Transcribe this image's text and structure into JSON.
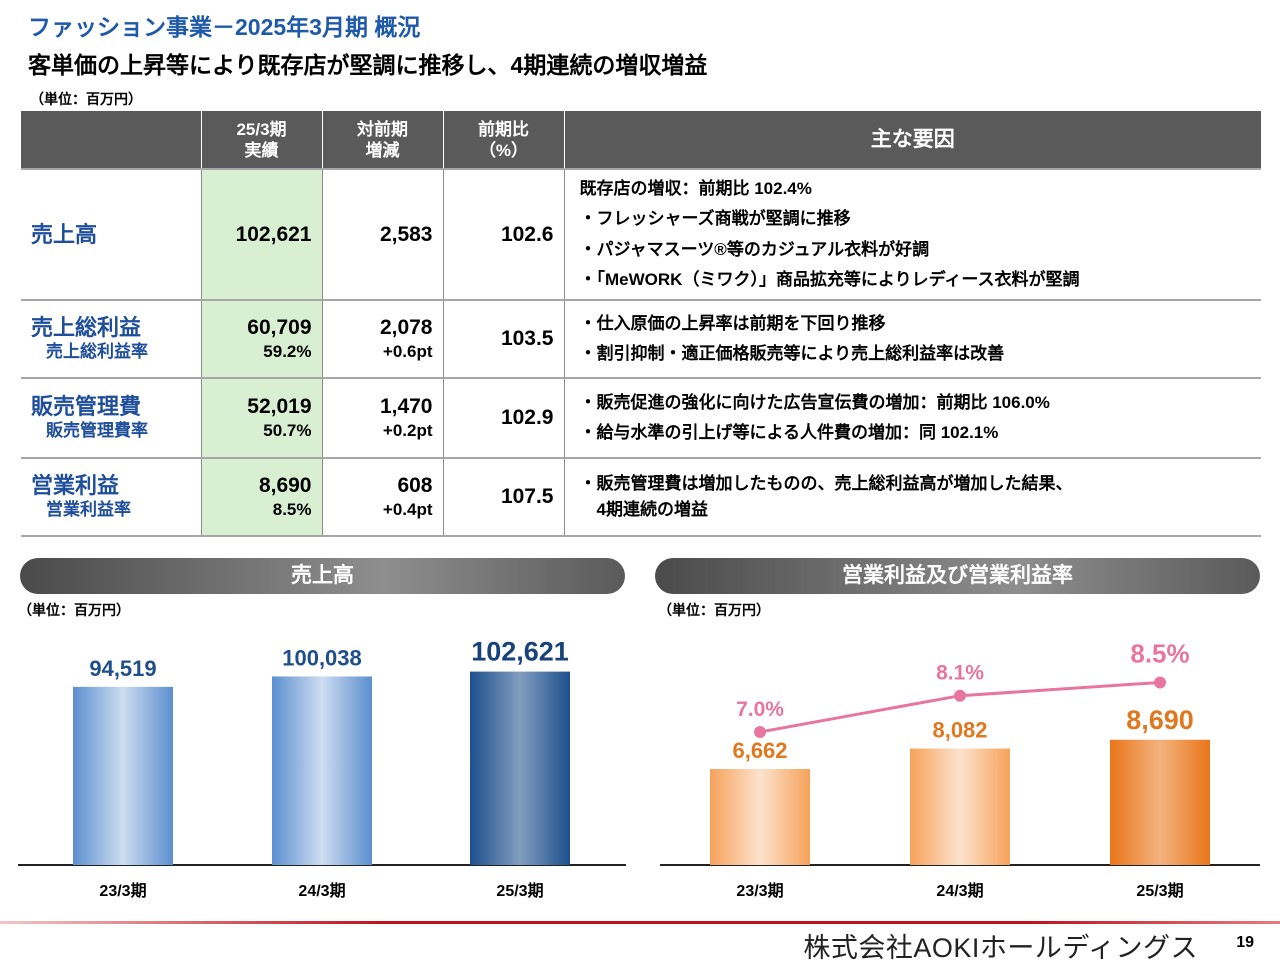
{
  "header": {
    "title": "ファッション事業－2025年3月期 概況",
    "subtitle": "客単価の上昇等により既存店が堅調に推移し、4期連続の増収増益",
    "unit": "（単位：百万円）"
  },
  "table": {
    "headers": {
      "label": "",
      "current": "25/3期\n実績",
      "change": "対前期\n増減",
      "ratio": "前期比\n（%）",
      "factors": "主な要因"
    },
    "rows": [
      {
        "label": "売上高",
        "sublabel": "",
        "value": "102,621",
        "subvalue": "",
        "change": "2,583",
        "subchange": "",
        "ratio": "102.6",
        "factors": [
          "既存店の増収：前期比 102.4%",
          "・フレッシャーズ商戦が堅調に推移",
          "・パジャマスーツ®等のカジュアル衣料が好調",
          "・「MeWORK（ミワク）」商品拡充等によりレディース衣料が堅調"
        ]
      },
      {
        "label": "売上総利益",
        "sublabel": "売上総利益率",
        "value": "60,709",
        "subvalue": "59.2%",
        "change": "2,078",
        "subchange": "+0.6pt",
        "ratio": "103.5",
        "factors": [
          "・仕入原価の上昇率は前期を下回り推移",
          "・割引抑制・適正価格販売等により売上総利益率は改善"
        ]
      },
      {
        "label": "販売管理費",
        "sublabel": "販売管理費率",
        "value": "52,019",
        "subvalue": "50.7%",
        "change": "1,470",
        "subchange": "+0.2pt",
        "ratio": "102.9",
        "factors": [
          "・販売促進の強化に向けた広告宣伝費の増加：前期比 106.0%",
          "・給与水準の引上げ等による人件費の増加：同 102.1%"
        ]
      },
      {
        "label": "営業利益",
        "sublabel": "営業利益率",
        "value": "8,690",
        "subvalue": "8.5%",
        "change": "608",
        "subchange": "+0.4pt",
        "ratio": "107.5",
        "factors": [
          "・販売管理費は増加したものの、売上総利益高が増加した結果、",
          "　4期連続の増益"
        ]
      }
    ]
  },
  "chart_data": [
    {
      "type": "bar",
      "title": "売上高",
      "unit": "（単位：百万円）",
      "categories": [
        "23/3期",
        "24/3期",
        "25/3期"
      ],
      "values": [
        94519,
        100038,
        102621
      ],
      "value_labels": [
        "94,519",
        "100,038",
        "102,621"
      ],
      "colors": [
        "#5b8fcf",
        "#5b8fcf",
        "#1c4f8c"
      ],
      "ylim": [
        0,
        130000
      ]
    },
    {
      "type": "bar",
      "title": "営業利益及び営業利益率",
      "unit": "（単位：百万円）",
      "categories": [
        "23/3期",
        "24/3期",
        "25/3期"
      ],
      "values": [
        6662,
        8082,
        8690
      ],
      "value_labels": [
        "6,662",
        "8,082",
        "8,690"
      ],
      "colors": [
        "#f6a25a",
        "#f6a25a",
        "#e97518"
      ],
      "ylim": [
        0,
        17000
      ],
      "line_series": {
        "values": [
          7.0,
          8.1,
          8.5
        ],
        "labels": [
          "7.0%",
          "8.1%",
          "8.5%"
        ],
        "color": "#e8769c"
      }
    }
  ],
  "footer": {
    "company": "株式会社AOKIホールディングス",
    "page": "19"
  }
}
